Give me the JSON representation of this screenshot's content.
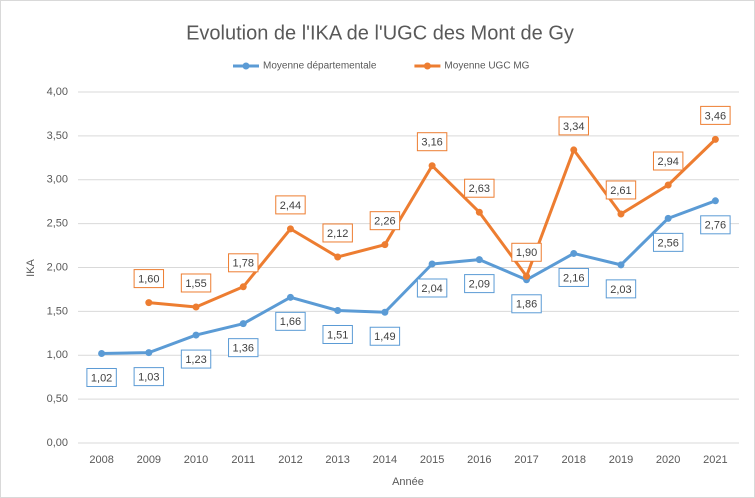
{
  "chart_data": {
    "type": "line",
    "title": "Evolution de l'IKA de l'UGC des Mont de Gy",
    "x_label": "Année",
    "y_label": "IKA",
    "categories": [
      "2008",
      "2009",
      "2010",
      "2011",
      "2012",
      "2013",
      "2014",
      "2015",
      "2016",
      "2017",
      "2018",
      "2019",
      "2020",
      "2021"
    ],
    "series": [
      {
        "name": "Moyenne départementale",
        "color": "#5b9bd5",
        "values": [
          1.02,
          1.03,
          1.23,
          1.36,
          1.66,
          1.51,
          1.49,
          2.04,
          2.09,
          1.86,
          2.16,
          2.03,
          2.56,
          2.76
        ],
        "value_labels": [
          "1,02",
          "1,03",
          "1,23",
          "1,36",
          "1,66",
          "1,51",
          "1,49",
          "2,04",
          "2,09",
          "1,86",
          "2,16",
          "2,03",
          "2,56",
          "2,76"
        ],
        "label_position": "below"
      },
      {
        "name": "Moyenne UGC MG",
        "color": "#ed7d31",
        "values": [
          null,
          1.6,
          1.55,
          1.78,
          2.44,
          2.12,
          2.26,
          3.16,
          2.63,
          1.9,
          3.34,
          2.61,
          2.94,
          3.46
        ],
        "value_labels": [
          null,
          "1,60",
          "1,55",
          "1,78",
          "2,44",
          "2,12",
          "2,26",
          "3,16",
          "2,63",
          "1,90",
          "3,34",
          "2,61",
          "2,94",
          "3,46"
        ],
        "label_position": "above"
      }
    ],
    "ylim": [
      0,
      4
    ],
    "yticks": [
      {
        "value": 0,
        "label": "0,00"
      },
      {
        "value": 0.5,
        "label": "0,50"
      },
      {
        "value": 1,
        "label": "1,00"
      },
      {
        "value": 1.5,
        "label": "1,50"
      },
      {
        "value": 2,
        "label": "2,00"
      },
      {
        "value": 2.5,
        "label": "2,50"
      },
      {
        "value": 3,
        "label": "3,00"
      },
      {
        "value": 3.5,
        "label": "3,50"
      },
      {
        "value": 4,
        "label": "4,00"
      }
    ],
    "grid": true,
    "legend": "top"
  }
}
